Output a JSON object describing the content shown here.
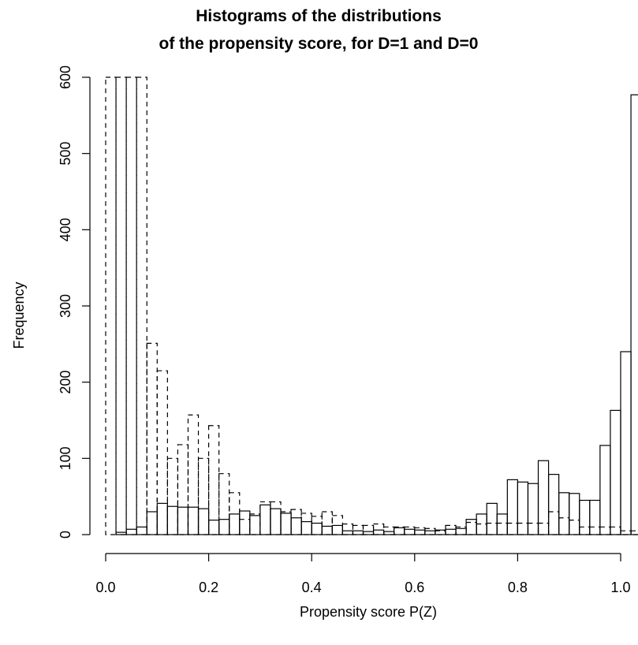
{
  "chart_data": {
    "type": "bar",
    "title_line1": "Histograms of the distributions",
    "title_line2": "of the propensity score, for D=1 and D=0",
    "xlabel": "Propensity score P(Z)",
    "ylabel": "Frequency",
    "xlim": [
      0.0,
      1.0
    ],
    "ylim": [
      0,
      600
    ],
    "xticks": [
      0.0,
      0.2,
      0.4,
      0.6,
      0.8,
      1.0
    ],
    "xtick_labels": [
      "0.0",
      "0.2",
      "0.4",
      "0.6",
      "0.8",
      "1.0"
    ],
    "yticks": [
      0,
      100,
      200,
      300,
      400,
      500,
      600
    ],
    "ytick_labels": [
      "0",
      "100",
      "200",
      "300",
      "400",
      "500",
      "600"
    ],
    "bin_width": 0.02,
    "bin_start": 0.0,
    "series": [
      {
        "name": "D=1",
        "line_style": "solid",
        "values": [
          0,
          3,
          7,
          10,
          30,
          41,
          37,
          36,
          36,
          34,
          19,
          20,
          27,
          31,
          25,
          39,
          34,
          28,
          22,
          17,
          15,
          11,
          12,
          5,
          5,
          4,
          6,
          4,
          9,
          7,
          6,
          5,
          6,
          7,
          8,
          20,
          27,
          41,
          27,
          72,
          69,
          67,
          97,
          79,
          55,
          54,
          45,
          45,
          117,
          163,
          240,
          577
        ]
      },
      {
        "name": "D=0",
        "line_style": "dashed",
        "values": [
          600,
          600,
          600,
          600,
          251,
          215,
          100,
          118,
          157,
          100,
          143,
          80,
          55,
          20,
          27,
          43,
          43,
          30,
          33,
          28,
          24,
          30,
          25,
          14,
          12,
          12,
          14,
          10,
          10,
          10,
          9,
          8,
          5,
          12,
          10,
          16,
          14,
          15,
          15,
          15,
          15,
          15,
          15,
          30,
          22,
          19,
          10,
          10,
          10,
          10,
          5,
          5
        ]
      }
    ]
  }
}
